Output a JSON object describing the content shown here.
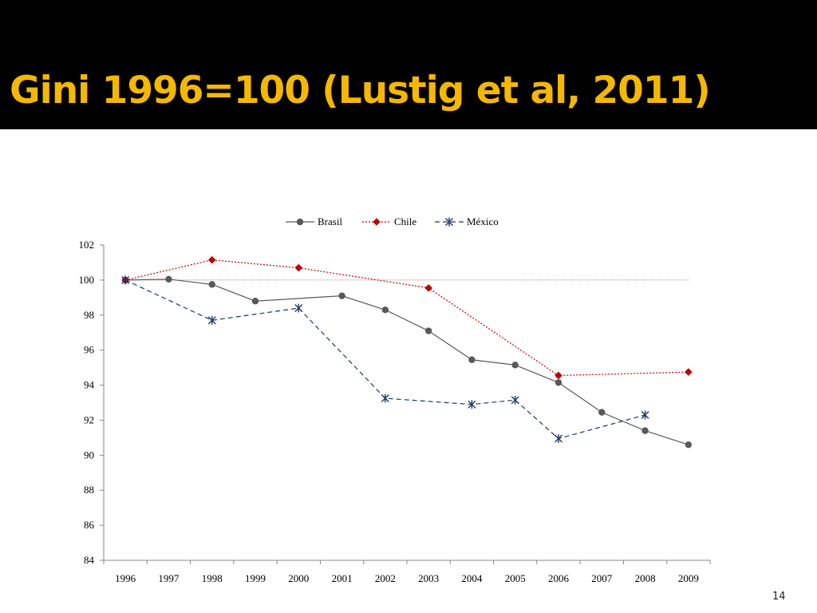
{
  "slide": {
    "title": "Gini 1996=100 (Lustig et al, 2011)",
    "page_number": "14"
  },
  "colors": {
    "title_bar": "#000000",
    "title_text": "#f5b800"
  },
  "chart_data": {
    "type": "line",
    "title": "",
    "xlabel": "",
    "ylabel": "",
    "categories": [
      "1996",
      "1997",
      "1998",
      "1999",
      "2000",
      "2001",
      "2002",
      "2003",
      "2004",
      "2005",
      "2006",
      "2007",
      "2008",
      "2009"
    ],
    "ylim": [
      84,
      102
    ],
    "yticks": [
      84,
      86,
      88,
      90,
      92,
      94,
      96,
      98,
      100,
      102
    ],
    "reference_line": 100,
    "legend_position": "top-center",
    "grid": false,
    "series": [
      {
        "name": "Brasil",
        "color": "#595959",
        "marker": "circle",
        "dash": "solid",
        "values": [
          100,
          100.05,
          99.75,
          98.8,
          null,
          99.1,
          98.3,
          97.1,
          95.45,
          95.15,
          94.15,
          92.45,
          91.4,
          90.6
        ]
      },
      {
        "name": "Chile",
        "color": "#c00000",
        "marker": "diamond",
        "dash": "dotted",
        "values": [
          100,
          null,
          101.15,
          null,
          100.7,
          null,
          null,
          99.55,
          null,
          null,
          94.55,
          null,
          null,
          94.75
        ]
      },
      {
        "name": "México",
        "color": "#1f3864",
        "marker": "asterisk",
        "dash": "dashed",
        "values": [
          100,
          null,
          97.7,
          null,
          98.4,
          null,
          93.25,
          null,
          92.9,
          93.15,
          90.95,
          null,
          92.3,
          null
        ]
      }
    ]
  }
}
